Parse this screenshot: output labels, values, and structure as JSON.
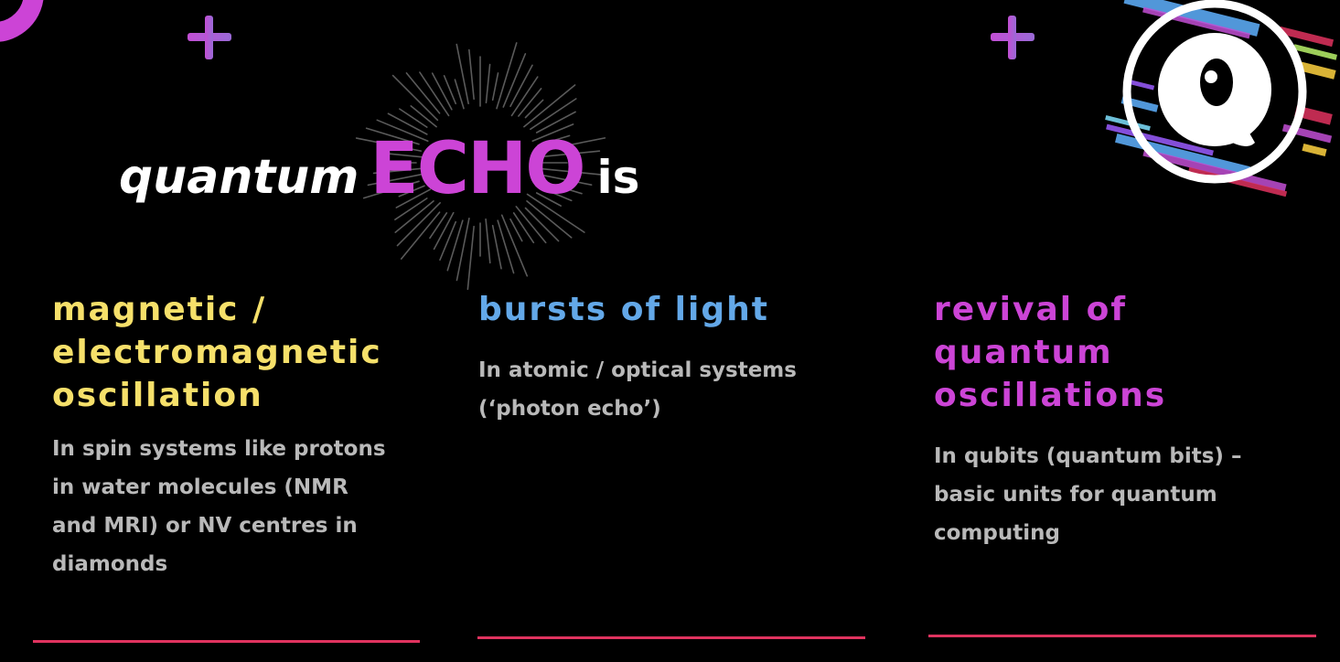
{
  "title": {
    "word1": "quantum",
    "word2": "ECHO",
    "word3": "is"
  },
  "logo": {
    "letter": "Q"
  },
  "columns": [
    {
      "heading": [
        "magnetic /",
        "electromagnetic",
        "oscillation"
      ],
      "body": [
        "In spin systems like protons",
        "in water molecules (NMR",
        "and MRI) or NV centres in",
        "diamonds"
      ]
    },
    {
      "heading": [
        "bursts of light"
      ],
      "body": [
        "In atomic / optical systems",
        "(‘photon echo’)"
      ]
    },
    {
      "heading": [
        "revival of",
        "quantum",
        "oscillations"
      ],
      "body": [
        "In qubits (quantum bits) –",
        "basic units for quantum",
        "computing"
      ]
    }
  ],
  "colors": {
    "background": "#000000",
    "magenta": "#cc44d6",
    "yellow": "#f6e06a",
    "blue": "#63a8e8",
    "body_text": "#b9b9b9",
    "rule": "#e0335f"
  },
  "icons": [
    "corner-ring",
    "plus-icon",
    "plus-icon",
    "starburst",
    "quantum-echo-logo"
  ]
}
